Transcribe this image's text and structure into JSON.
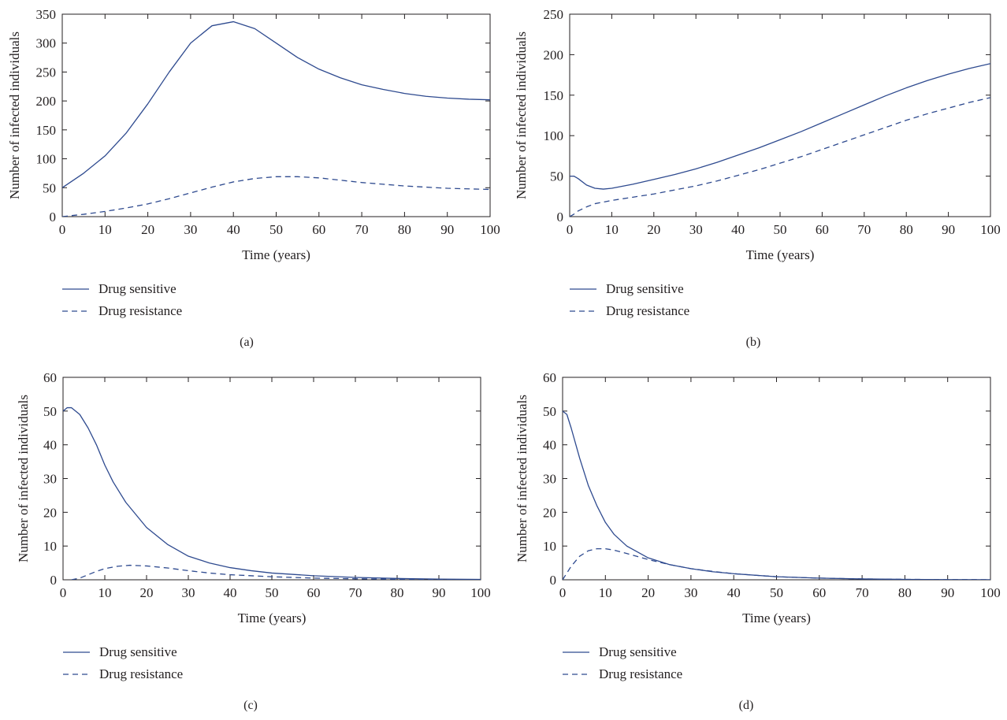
{
  "colors": {
    "series": "#2e4a8f",
    "axis": "#231f20"
  },
  "legend": {
    "placement": "below-plot"
  },
  "chart_data": [
    {
      "type": "line",
      "panel_label": "(a)",
      "xlabel": "Time (years)",
      "ylabel": "Number of infected individuals",
      "xlim": [
        0,
        100
      ],
      "ylim": [
        0,
        350
      ],
      "xticks": [
        0,
        10,
        20,
        30,
        40,
        50,
        60,
        70,
        80,
        90,
        100
      ],
      "yticks": [
        0,
        50,
        100,
        150,
        200,
        250,
        300,
        350
      ],
      "grid": false,
      "series": [
        {
          "name": "Drug sensitive",
          "style": "solid",
          "x": [
            0,
            5,
            10,
            15,
            20,
            25,
            30,
            35,
            40,
            45,
            50,
            55,
            60,
            65,
            70,
            75,
            80,
            85,
            90,
            95,
            100
          ],
          "y": [
            50,
            75,
            105,
            145,
            195,
            250,
            300,
            330,
            337,
            325,
            300,
            275,
            255,
            240,
            228,
            220,
            213,
            208,
            205,
            203,
            202
          ]
        },
        {
          "name": "Drug resistance",
          "style": "dashed",
          "x": [
            0,
            5,
            10,
            15,
            20,
            25,
            30,
            35,
            40,
            45,
            50,
            55,
            60,
            65,
            70,
            75,
            80,
            85,
            90,
            95,
            100
          ],
          "y": [
            0,
            4,
            9,
            15,
            22,
            31,
            41,
            51,
            60,
            66,
            69,
            69,
            67,
            63,
            59,
            56,
            53,
            51,
            49,
            48,
            47
          ]
        }
      ]
    },
    {
      "type": "line",
      "panel_label": "(b)",
      "xlabel": "Time (years)",
      "ylabel": "Number of infected individuals",
      "xlim": [
        0,
        100
      ],
      "ylim": [
        0,
        250
      ],
      "xticks": [
        0,
        10,
        20,
        30,
        40,
        50,
        60,
        70,
        80,
        90,
        100
      ],
      "yticks": [
        0,
        50,
        100,
        150,
        200,
        250
      ],
      "grid": false,
      "series": [
        {
          "name": "Drug sensitive",
          "style": "solid",
          "x": [
            0,
            1,
            2,
            4,
            6,
            8,
            10,
            15,
            20,
            25,
            30,
            35,
            40,
            45,
            50,
            55,
            60,
            65,
            70,
            75,
            80,
            85,
            90,
            95,
            100
          ],
          "y": [
            50,
            50,
            47,
            39,
            35,
            34,
            35,
            40,
            46,
            52,
            59,
            67,
            76,
            85,
            95,
            105,
            116,
            127,
            138,
            149,
            159,
            168,
            176,
            183,
            189
          ]
        },
        {
          "name": "Drug resistance",
          "style": "dashed",
          "x": [
            0,
            1,
            2,
            4,
            6,
            8,
            10,
            15,
            20,
            25,
            30,
            35,
            40,
            45,
            50,
            55,
            60,
            65,
            70,
            75,
            80,
            85,
            90,
            95,
            100
          ],
          "y": [
            0,
            3,
            7,
            12,
            16,
            18,
            20,
            24,
            28,
            33,
            38,
            44,
            51,
            58,
            66,
            74,
            83,
            92,
            101,
            110,
            119,
            127,
            134,
            141,
            147
          ]
        }
      ]
    },
    {
      "type": "line",
      "panel_label": "(c)",
      "xlabel": "Time (years)",
      "ylabel": "Number of infected individuals",
      "xlim": [
        0,
        100
      ],
      "ylim": [
        0,
        60
      ],
      "xticks": [
        0,
        10,
        20,
        30,
        40,
        50,
        60,
        70,
        80,
        90,
        100
      ],
      "yticks": [
        0,
        10,
        20,
        30,
        40,
        50,
        60
      ],
      "grid": false,
      "series": [
        {
          "name": "Drug sensitive",
          "style": "solid",
          "x": [
            0,
            1,
            2,
            4,
            6,
            8,
            10,
            12,
            15,
            20,
            25,
            30,
            35,
            40,
            45,
            50,
            60,
            70,
            80,
            90,
            100
          ],
          "y": [
            50,
            51,
            51,
            49,
            45,
            40,
            34,
            29,
            23,
            15.5,
            10.5,
            7,
            5,
            3.6,
            2.7,
            2,
            1.2,
            0.7,
            0.4,
            0.2,
            0.1
          ]
        },
        {
          "name": "Drug resistance",
          "style": "dashed",
          "x": [
            2,
            4,
            6,
            8,
            10,
            13,
            16,
            20,
            25,
            30,
            35,
            40,
            50,
            60,
            70,
            80,
            90,
            100
          ],
          "y": [
            0,
            0.5,
            1.5,
            2.5,
            3.3,
            4,
            4.3,
            4.1,
            3.5,
            2.7,
            2,
            1.5,
            0.9,
            0.5,
            0.3,
            0.15,
            0.1,
            0.05
          ]
        }
      ]
    },
    {
      "type": "line",
      "panel_label": "(d)",
      "xlabel": "Time (years)",
      "ylabel": "Number of infected individuals",
      "xlim": [
        0,
        100
      ],
      "ylim": [
        0,
        60
      ],
      "xticks": [
        0,
        10,
        20,
        30,
        40,
        50,
        60,
        70,
        80,
        90,
        100
      ],
      "yticks": [
        0,
        10,
        20,
        30,
        40,
        50,
        60
      ],
      "grid": false,
      "series": [
        {
          "name": "Drug sensitive",
          "style": "solid",
          "x": [
            0,
            1,
            2,
            4,
            6,
            8,
            10,
            12,
            15,
            20,
            25,
            30,
            35,
            40,
            50,
            60,
            70,
            80,
            90,
            100
          ],
          "y": [
            50,
            49,
            45,
            36,
            28,
            22,
            17,
            13.5,
            10,
            6.5,
            4.5,
            3.3,
            2.4,
            1.8,
            0.9,
            0.5,
            0.25,
            0.12,
            0.06,
            0.03
          ]
        },
        {
          "name": "Drug resistance",
          "style": "dashed",
          "x": [
            0,
            1,
            2,
            4,
            6,
            8,
            10,
            12,
            15,
            20,
            25,
            30,
            35,
            40,
            50,
            60,
            70,
            80,
            90,
            100
          ],
          "y": [
            0,
            2,
            4,
            7,
            8.6,
            9.2,
            9.2,
            8.8,
            7.8,
            6,
            4.5,
            3.3,
            2.5,
            1.8,
            0.9,
            0.5,
            0.25,
            0.12,
            0.06,
            0.03
          ]
        }
      ]
    }
  ]
}
